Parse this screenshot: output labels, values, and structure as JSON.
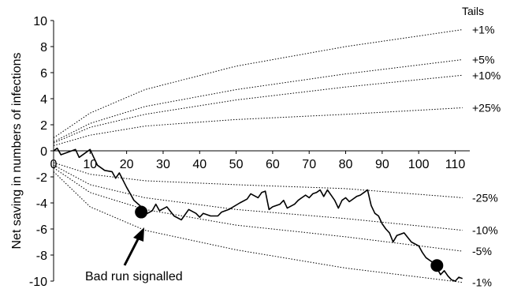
{
  "chart_data": {
    "type": "line",
    "title": "",
    "xlabel": "",
    "ylabel": "Net saving in numbers of infections",
    "xlim": [
      0,
      114
    ],
    "ylim": [
      -10,
      10
    ],
    "x_ticks": [
      0,
      10,
      20,
      30,
      40,
      50,
      60,
      70,
      80,
      90,
      100,
      110
    ],
    "y_ticks": [
      -10,
      -8,
      -6,
      -4,
      -2,
      0,
      2,
      4,
      6,
      8,
      10
    ],
    "grid": false,
    "legend": "none",
    "tails_header": "Tails",
    "upper_limits": [
      {
        "label": "+1%",
        "values": [
          [
            0,
            1.0
          ],
          [
            10,
            2.9
          ],
          [
            25,
            4.7
          ],
          [
            50,
            6.5
          ],
          [
            80,
            8.0
          ],
          [
            112,
            9.3
          ]
        ]
      },
      {
        "label": "+5%",
        "values": [
          [
            0,
            0.7
          ],
          [
            10,
            2.1
          ],
          [
            25,
            3.4
          ],
          [
            50,
            4.7
          ],
          [
            80,
            5.9
          ],
          [
            112,
            7.0
          ]
        ]
      },
      {
        "label": "+10%",
        "values": [
          [
            0,
            0.6
          ],
          [
            10,
            1.8
          ],
          [
            25,
            2.8
          ],
          [
            50,
            3.9
          ],
          [
            80,
            4.9
          ],
          [
            112,
            5.8
          ]
        ]
      },
      {
        "label": "+25%",
        "values": [
          [
            0,
            0.4
          ],
          [
            10,
            1.2
          ],
          [
            25,
            1.9
          ],
          [
            50,
            2.4
          ],
          [
            80,
            2.8
          ],
          [
            112,
            3.3
          ]
        ]
      }
    ],
    "lower_limits": [
      {
        "label": "-25%",
        "values": [
          [
            0,
            -0.9
          ],
          [
            10,
            -1.8
          ],
          [
            25,
            -2.3
          ],
          [
            50,
            -2.6
          ],
          [
            80,
            -2.9
          ],
          [
            112,
            -3.6
          ]
        ]
      },
      {
        "label": "-10%",
        "values": [
          [
            0,
            -1.1
          ],
          [
            10,
            -2.6
          ],
          [
            25,
            -3.6
          ],
          [
            50,
            -4.5
          ],
          [
            80,
            -5.2
          ],
          [
            112,
            -6.1
          ]
        ]
      },
      {
        "label": "-5%",
        "values": [
          [
            0,
            -1.3
          ],
          [
            10,
            -3.2
          ],
          [
            25,
            -4.5
          ],
          [
            50,
            -5.7
          ],
          [
            80,
            -6.6
          ],
          [
            112,
            -7.7
          ]
        ]
      },
      {
        "label": "-1%",
        "values": [
          [
            0,
            -1.6
          ],
          [
            10,
            -4.3
          ],
          [
            25,
            -6.1
          ],
          [
            50,
            -7.6
          ],
          [
            80,
            -9.0
          ],
          [
            112,
            -10.1
          ]
        ]
      }
    ],
    "series": [
      {
        "values": [
          [
            0,
            0
          ],
          [
            1,
            0.2
          ],
          [
            2,
            -0.3
          ],
          [
            6,
            0.1
          ],
          [
            7,
            -0.5
          ],
          [
            10,
            0.1
          ],
          [
            11,
            -0.5
          ],
          [
            12,
            -1.1
          ],
          [
            14,
            -1.5
          ],
          [
            16,
            -1.6
          ],
          [
            17,
            -2.1
          ],
          [
            18,
            -1.7
          ],
          [
            20,
            -2.8
          ],
          [
            21,
            -3.3
          ],
          [
            22,
            -3.8
          ],
          [
            24,
            -4.3
          ],
          [
            25,
            -4.9
          ],
          [
            27,
            -4.6
          ],
          [
            28,
            -4.1
          ],
          [
            29,
            -4.6
          ],
          [
            31,
            -4.3
          ],
          [
            33,
            -5.0
          ],
          [
            35,
            -5.3
          ],
          [
            37,
            -4.5
          ],
          [
            39,
            -4.8
          ],
          [
            40,
            -5.1
          ],
          [
            41,
            -4.8
          ],
          [
            43,
            -5.0
          ],
          [
            45,
            -5.0
          ],
          [
            46,
            -4.7
          ],
          [
            48,
            -4.5
          ],
          [
            51,
            -4.0
          ],
          [
            53,
            -3.7
          ],
          [
            54,
            -3.3
          ],
          [
            56,
            -3.6
          ],
          [
            57,
            -3.2
          ],
          [
            58,
            -3.1
          ],
          [
            59,
            -4.5
          ],
          [
            60,
            -4.3
          ],
          [
            62,
            -4.1
          ],
          [
            63,
            -3.8
          ],
          [
            64,
            -4.4
          ],
          [
            66,
            -4.1
          ],
          [
            67,
            -3.8
          ],
          [
            68,
            -3.6
          ],
          [
            69,
            -3.4
          ],
          [
            70,
            -3.6
          ],
          [
            71,
            -3.3
          ],
          [
            72,
            -3.2
          ],
          [
            73,
            -3.0
          ],
          [
            74,
            -3.5
          ],
          [
            75,
            -3.0
          ],
          [
            76,
            -3.4
          ],
          [
            77,
            -3.8
          ],
          [
            78,
            -4.4
          ],
          [
            79,
            -3.8
          ],
          [
            80,
            -3.6
          ],
          [
            81,
            -3.9
          ],
          [
            82,
            -3.7
          ],
          [
            83,
            -3.5
          ],
          [
            84,
            -3.4
          ],
          [
            85,
            -3.2
          ],
          [
            86,
            -3.0
          ],
          [
            87,
            -4.2
          ],
          [
            88,
            -4.8
          ],
          [
            89,
            -5.0
          ],
          [
            90,
            -5.6
          ],
          [
            91,
            -6.0
          ],
          [
            92,
            -6.3
          ],
          [
            93,
            -7.0
          ],
          [
            94,
            -6.5
          ],
          [
            96,
            -6.3
          ],
          [
            98,
            -7.0
          ],
          [
            100,
            -7.3
          ],
          [
            101,
            -7.8
          ],
          [
            102,
            -8.2
          ],
          [
            104,
            -8.6
          ],
          [
            105,
            -9.0
          ],
          [
            106,
            -9.5
          ],
          [
            107,
            -9.2
          ],
          [
            108,
            -9.6
          ],
          [
            109,
            -9.9
          ],
          [
            110,
            -10.0
          ],
          [
            111,
            -9.7
          ],
          [
            112,
            -9.8
          ]
        ]
      }
    ],
    "signals": [
      {
        "x": 24,
        "y": -4.7
      },
      {
        "x": 105,
        "y": -8.8
      }
    ],
    "annotation": {
      "text": "Bad run signalled"
    }
  }
}
